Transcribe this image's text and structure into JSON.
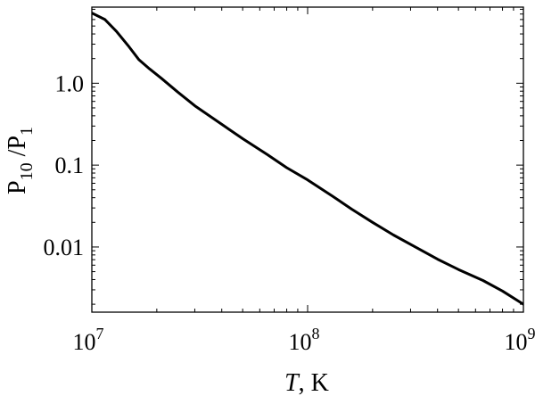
{
  "chart_data": {
    "type": "line",
    "title": "",
    "xlabel": {
      "italic": "T",
      "rest": ", K"
    },
    "ylabel": {
      "main1": "P",
      "sub1": "10",
      "slash": " /P",
      "sub2": "1"
    },
    "x_scale": "log",
    "y_scale": "log",
    "xlim": [
      10000000,
      1000000000
    ],
    "ylim": [
      0.0016,
      8.5
    ],
    "x_ticks": [
      {
        "value": 10000000,
        "base": "10",
        "exp": "7"
      },
      {
        "value": 100000000,
        "base": "10",
        "exp": "8"
      },
      {
        "value": 1000000000,
        "base": "10",
        "exp": "9"
      }
    ],
    "y_ticks": [
      {
        "value": 1.0,
        "label": "1.0"
      },
      {
        "value": 0.1,
        "label": "0.1"
      },
      {
        "value": 0.01,
        "label": "0.01"
      }
    ],
    "grid": false,
    "legend": "none",
    "series": [
      {
        "color": "#000000",
        "points": [
          [
            10000000,
            7.2
          ],
          [
            11500000,
            6.0
          ],
          [
            13000000,
            4.3
          ],
          [
            14700000,
            2.9
          ],
          [
            16500000,
            1.95
          ],
          [
            18500000,
            1.5
          ],
          [
            21000000,
            1.15
          ],
          [
            25000000,
            0.78
          ],
          [
            30000000,
            0.53
          ],
          [
            40000000,
            0.315
          ],
          [
            50000000,
            0.21
          ],
          [
            65000000,
            0.135
          ],
          [
            80000000,
            0.093
          ],
          [
            100000000,
            0.066
          ],
          [
            130000000,
            0.042
          ],
          [
            160000000,
            0.029
          ],
          [
            200000000,
            0.02
          ],
          [
            250000000,
            0.014
          ],
          [
            320000000,
            0.0098
          ],
          [
            400000000,
            0.0071
          ],
          [
            500000000,
            0.0053
          ],
          [
            650000000,
            0.0039
          ],
          [
            800000000,
            0.0029
          ],
          [
            1000000000,
            0.002
          ]
        ]
      }
    ]
  }
}
